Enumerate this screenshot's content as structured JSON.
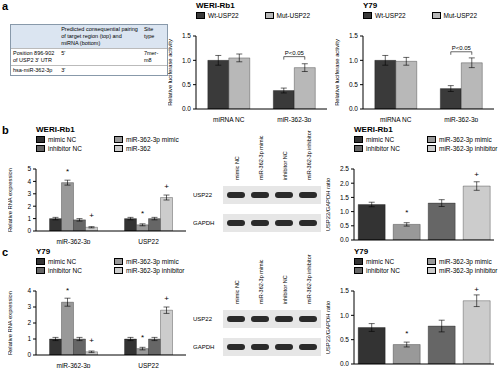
{
  "panel_labels": [
    "a",
    "b",
    "c"
  ],
  "table": {
    "header": {
      "pairing": "Predicted consequential pairing of target region (top) and miRNA (bottom)",
      "site": "Site type"
    },
    "rows": [
      {
        "label": "Position 896-902 of USP2 3' UTR",
        "end": "5'",
        "site": "7mer-m8"
      },
      {
        "label": "hsa-miR-362-3p",
        "end": "3'"
      }
    ]
  },
  "blots": [
    {
      "lanes": [
        "mimic NC",
        "miR-362-3p mimic",
        "inhibitor NC",
        "miR-362-3p inhibitor"
      ],
      "rows": [
        "USP22",
        "GAPDH"
      ]
    },
    {
      "lanes": [
        "mimic NC",
        "miR-362-3p mimic",
        "inhibitor NC",
        "miR-362-3p inhibitor"
      ],
      "rows": [
        "USP22",
        "GAPDH"
      ]
    }
  ],
  "chart_data": [
    {
      "type": "bar",
      "title": "WERI-Rb1",
      "y_label": "Relative luciferase activity",
      "categories": [
        "miRNA NC",
        "miR-362-3p"
      ],
      "ylim": [
        0,
        1.5
      ],
      "yticks": [
        {
          "value": 0,
          "label": "0.0"
        },
        {
          "value": 0.5,
          "label": "0.5"
        },
        {
          "value": 1,
          "label": "1.0"
        },
        {
          "value": 1.5,
          "label": "1.5"
        }
      ],
      "grid": false,
      "legend": "top",
      "series": [
        {
          "name": "Wt-USP22",
          "color": "#3a3a3a",
          "values": [
            1.0,
            0.38
          ],
          "errors": [
            0.1,
            0.05
          ]
        },
        {
          "name": "Mut-USP22",
          "color": "#b8b8b8",
          "values": [
            1.05,
            0.85
          ],
          "errors": [
            0.08,
            0.08
          ]
        }
      ],
      "annotations": [
        {
          "text": "P<0.05",
          "category": "miR-362-3p"
        }
      ]
    },
    {
      "type": "bar",
      "title": "Y79",
      "y_label": "Relative luciferase activity",
      "categories": [
        "miRNA NC",
        "miR-362-3p"
      ],
      "ylim": [
        0,
        1.5
      ],
      "yticks": [
        {
          "value": 0,
          "label": "0.0"
        },
        {
          "value": 0.5,
          "label": "0.5"
        },
        {
          "value": 1,
          "label": "1.0"
        },
        {
          "value": 1.5,
          "label": "1.5"
        }
      ],
      "grid": false,
      "legend": "top",
      "series": [
        {
          "name": "Wt-USP22",
          "color": "#3a3a3a",
          "values": [
            1.0,
            0.42
          ],
          "errors": [
            0.1,
            0.06
          ]
        },
        {
          "name": "Mut-USP22",
          "color": "#b8b8b8",
          "values": [
            0.98,
            0.95
          ],
          "errors": [
            0.08,
            0.1
          ]
        }
      ],
      "annotations": [
        {
          "text": "P<0.05",
          "category": "miR-362-3p"
        }
      ]
    },
    {
      "type": "bar",
      "title": "WERI-Rb1",
      "y_label": "Relative RNA expression",
      "categories": [
        "miR-362-3p",
        "USP22"
      ],
      "ylim": [
        0,
        5
      ],
      "yticks": [
        0,
        1,
        2,
        3,
        4,
        5
      ],
      "grid": false,
      "legend": "top",
      "series": [
        {
          "name": "mimic NC",
          "color": "#333333",
          "values": [
            1.0,
            1.0
          ],
          "errors": [
            0.1,
            0.1
          ],
          "annotations": [
            null,
            null
          ]
        },
        {
          "name": "miR-362-3p mimic",
          "color": "#999999",
          "values": [
            3.9,
            0.5
          ],
          "errors": [
            0.2,
            0.08
          ],
          "annotations": [
            "*",
            "*"
          ]
        },
        {
          "name": "inhibitor NC",
          "color": "#666666",
          "values": [
            0.9,
            1.0
          ],
          "errors": [
            0.1,
            0.1
          ],
          "annotations": [
            null,
            null
          ]
        },
        {
          "name": "miR-362",
          "color": "#cccccc",
          "values": [
            0.3,
            2.7
          ],
          "errors": [
            0.05,
            0.2
          ],
          "annotations": [
            "+",
            "+"
          ]
        }
      ]
    },
    {
      "type": "bar",
      "title": "WERI-Rb1",
      "y_label": "USP22/GAPDH ratio",
      "categories": [
        "mimic NC",
        "miR-362-3p mimic",
        "inhibitor NC",
        "miR-362-3p inhibitor"
      ],
      "values": [
        1.25,
        0.55,
        1.3,
        1.9
      ],
      "errors": [
        0.08,
        0.06,
        0.12,
        0.15
      ],
      "annotations": [
        null,
        "*",
        null,
        "+"
      ],
      "colors": [
        "#333333",
        "#999999",
        "#666666",
        "#cccccc"
      ],
      "ylim": [
        0,
        2.5
      ],
      "yticks": [
        {
          "value": 0,
          "label": "0.0"
        },
        {
          "value": 0.5,
          "label": "0.5"
        },
        {
          "value": 1,
          "label": "1.0"
        },
        {
          "value": 1.5,
          "label": "1.5"
        },
        {
          "value": 2,
          "label": "2.0"
        },
        {
          "value": 2.5,
          "label": "2.5"
        }
      ],
      "grid": false,
      "legend": "top",
      "tick_labels": "y"
    },
    {
      "type": "bar",
      "title": "Y79",
      "y_label": "Relative RNA expression",
      "categories": [
        "miR-362-3p",
        "USP22"
      ],
      "ylim": [
        0,
        4
      ],
      "yticks": [
        0,
        1,
        2,
        3,
        4
      ],
      "grid": false,
      "legend": "top",
      "series": [
        {
          "name": "mimic NC",
          "color": "#333333",
          "values": [
            1.0,
            1.0
          ],
          "errors": [
            0.1,
            0.1
          ],
          "annotations": [
            null,
            null
          ]
        },
        {
          "name": "miR-362-3p mimic",
          "color": "#999999",
          "values": [
            3.3,
            0.4
          ],
          "errors": [
            0.25,
            0.08
          ],
          "annotations": [
            "*",
            "*"
          ]
        },
        {
          "name": "inhibitor NC",
          "color": "#666666",
          "values": [
            1.0,
            1.0
          ],
          "errors": [
            0.1,
            0.1
          ],
          "annotations": [
            null,
            null
          ]
        },
        {
          "name": "miR-362-3p inhibitor",
          "color": "#cccccc",
          "values": [
            0.2,
            2.8
          ],
          "errors": [
            0.05,
            0.2
          ],
          "annotations": [
            "+",
            "+"
          ]
        }
      ]
    },
    {
      "type": "bar",
      "title": "Y79",
      "y_label": "USP22/GAPDH ratio",
      "categories": [
        "mimic NC",
        "miR-362-3p mimic",
        "inhibitor NC",
        "miR-362-3p inhibitor"
      ],
      "values": [
        0.75,
        0.4,
        0.78,
        1.3
      ],
      "errors": [
        0.08,
        0.05,
        0.12,
        0.12
      ],
      "annotations": [
        null,
        "*",
        null,
        "+"
      ],
      "colors": [
        "#333333",
        "#999999",
        "#666666",
        "#cccccc"
      ],
      "ylim": [
        0,
        1.5
      ],
      "yticks": [
        {
          "value": 0,
          "label": "0.0"
        },
        {
          "value": 0.5,
          "label": "0.5"
        },
        {
          "value": 1,
          "label": "1.0"
        },
        {
          "value": 1.5,
          "label": "1.5"
        }
      ],
      "grid": false,
      "legend": "top",
      "tick_labels": "y"
    }
  ]
}
